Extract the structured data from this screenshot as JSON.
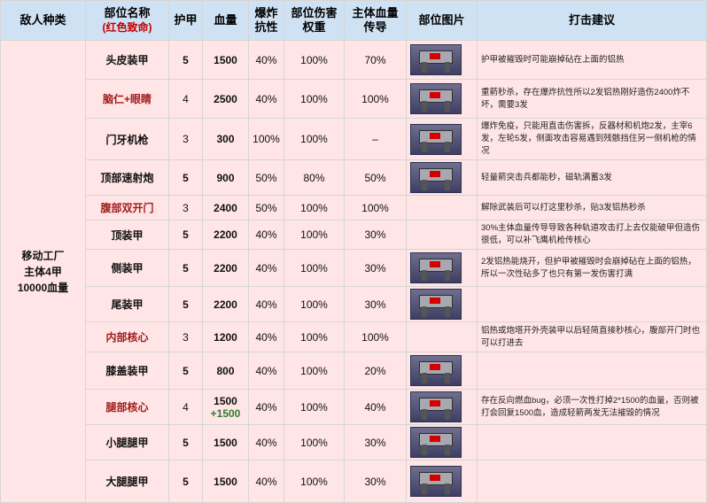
{
  "header": {
    "enemy_type": "敌人种类",
    "part_name": "部位名称",
    "part_name_note": "(红色致命)",
    "armor": "护甲",
    "hp": "血量",
    "explosion_resist_1": "爆炸",
    "explosion_resist_2": "抗性",
    "damage_weight_1": "部位伤害",
    "damage_weight_2": "权重",
    "main_transfer_1": "主体血量",
    "main_transfer_2": "传导",
    "image": "部位图片",
    "advice": "打击建议"
  },
  "enemy": {
    "line1": "移动工厂",
    "line2": "主体4甲",
    "line3": "10000血量"
  },
  "rows": [
    {
      "name": "头皮装甲",
      "critical": false,
      "armor": "5",
      "hp": "1500",
      "hp_bonus": "",
      "explosion": "40%",
      "weight": "100%",
      "transfer": "70%",
      "has_image": true,
      "advice": "护甲被摧毁时可能崩掉砧在上面的铝热"
    },
    {
      "name": "脑仁+眼睛",
      "critical": true,
      "armor": "4",
      "hp": "2500",
      "hp_bonus": "",
      "explosion": "40%",
      "weight": "100%",
      "transfer": "100%",
      "has_image": true,
      "advice": "重箭秒杀，存在爆炸抗性所以2发铝热刚好造伤2400炸不坏，需要3发"
    },
    {
      "name": "门牙机枪",
      "critical": false,
      "armor": "3",
      "hp": "300",
      "hp_bonus": "",
      "explosion": "100%",
      "weight": "100%",
      "transfer": "–",
      "has_image": true,
      "advice": "爆炸免疫，只能用直击伤害拆，反器材和机炮2发，主宰6发，左轮5发，侧面攻击容易遇到残骸挡住另一侧机枪的情况"
    },
    {
      "name": "顶部速射炮",
      "critical": false,
      "armor": "5",
      "hp": "900",
      "hp_bonus": "",
      "explosion": "50%",
      "weight": "80%",
      "transfer": "50%",
      "has_image": true,
      "advice": "轻量箭突击兵都能秒，磁轨满蓄3发"
    },
    {
      "name": "腹部双开门",
      "critical": true,
      "armor": "3",
      "hp": "2400",
      "hp_bonus": "",
      "explosion": "50%",
      "weight": "100%",
      "transfer": "100%",
      "has_image": false,
      "advice": "解除武装后可以打这里秒杀，贴3发铝热秒杀"
    },
    {
      "name": "顶装甲",
      "critical": false,
      "armor": "5",
      "hp": "2200",
      "hp_bonus": "",
      "explosion": "40%",
      "weight": "100%",
      "transfer": "30%",
      "has_image": false,
      "advice": "30%主体血量传导导致各种轨道攻击打上去仅能破甲但造伤很低，可以补飞鹰机枪传核心"
    },
    {
      "name": "侧装甲",
      "critical": false,
      "armor": "5",
      "hp": "2200",
      "hp_bonus": "",
      "explosion": "40%",
      "weight": "100%",
      "transfer": "30%",
      "has_image": true,
      "advice": "2发铝热能烧开，但护甲被摧毁时会崩掉砧在上面的铝热，所以一次性砧多了也只有第一发伤害打满"
    },
    {
      "name": "尾装甲",
      "critical": false,
      "armor": "5",
      "hp": "2200",
      "hp_bonus": "",
      "explosion": "40%",
      "weight": "100%",
      "transfer": "30%",
      "has_image": true,
      "advice": ""
    },
    {
      "name": "内部核心",
      "critical": true,
      "armor": "3",
      "hp": "1200",
      "hp_bonus": "",
      "explosion": "40%",
      "weight": "100%",
      "transfer": "100%",
      "has_image": false,
      "advice": "铝热或炮塔开外壳装甲以后轻简直接秒核心，腹部开门时也可以打进去"
    },
    {
      "name": "膝盖装甲",
      "critical": false,
      "armor": "5",
      "hp": "800",
      "hp_bonus": "",
      "explosion": "40%",
      "weight": "100%",
      "transfer": "20%",
      "has_image": true,
      "advice": ""
    },
    {
      "name": "腿部核心",
      "critical": true,
      "armor": "4",
      "hp": "1500",
      "hp_bonus": "+1500",
      "explosion": "40%",
      "weight": "100%",
      "transfer": "40%",
      "has_image": true,
      "advice": "存在反向燃血bug，必须一次性打掉2*1500的血量，否则被打会回复1500血，造成轻箭两发无法摧毁的情况"
    },
    {
      "name": "小腿腿甲",
      "critical": false,
      "armor": "5",
      "hp": "1500",
      "hp_bonus": "",
      "explosion": "40%",
      "weight": "100%",
      "transfer": "30%",
      "has_image": true,
      "advice": ""
    },
    {
      "name": "大腿腿甲",
      "critical": false,
      "armor": "5",
      "hp": "1500",
      "hp_bonus": "",
      "explosion": "40%",
      "weight": "100%",
      "transfer": "30%",
      "has_image": true,
      "advice": ""
    }
  ]
}
